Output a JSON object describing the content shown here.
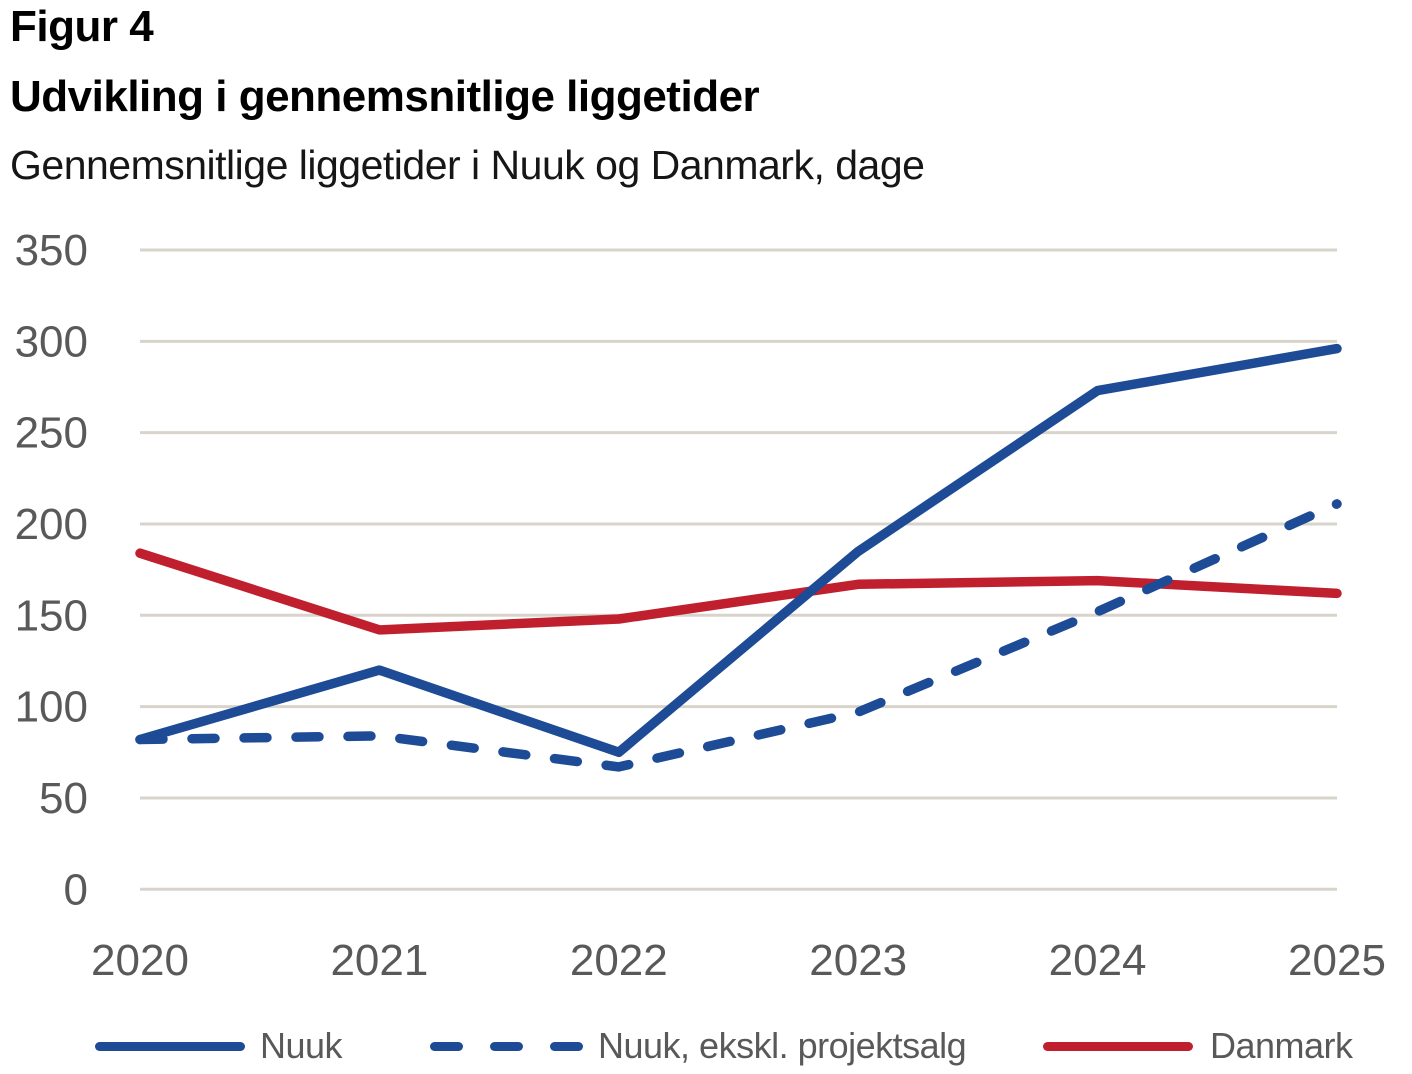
{
  "header": {
    "figure_label": "Figur 4",
    "title": "Udvikling i gennemsnitlige liggetider",
    "subtitle": "Gennemsnitlige liggetider i Nuuk og Danmark, dage"
  },
  "chart_data": {
    "type": "line",
    "categories": [
      "2020",
      "2021",
      "2022",
      "2023",
      "2024",
      "2025"
    ],
    "series": [
      {
        "name": "Nuuk",
        "style": "solid",
        "color": "#1e4b96",
        "values": [
          82,
          120,
          75,
          185,
          273,
          296
        ]
      },
      {
        "name": "Nuuk, ekskl. projektsalg",
        "style": "dashed",
        "color": "#1e4b96",
        "values": [
          82,
          84,
          67,
          97,
          152,
          211
        ]
      },
      {
        "name": "Danmark",
        "style": "solid",
        "color": "#c0202e",
        "values": [
          184,
          142,
          148,
          167,
          169,
          162
        ]
      }
    ],
    "ylabel": "dage",
    "ylim": [
      0,
      350
    ],
    "yticks": [
      0,
      50,
      100,
      150,
      200,
      250,
      300,
      350
    ],
    "grid": "horizontal",
    "legend_position": "bottom"
  },
  "colors": {
    "nuuk_blue": "#1e4b96",
    "danmark_red": "#c0202e",
    "gridline": "#d8d4cb",
    "axis_text": "#595959",
    "title_text": "#000000"
  }
}
